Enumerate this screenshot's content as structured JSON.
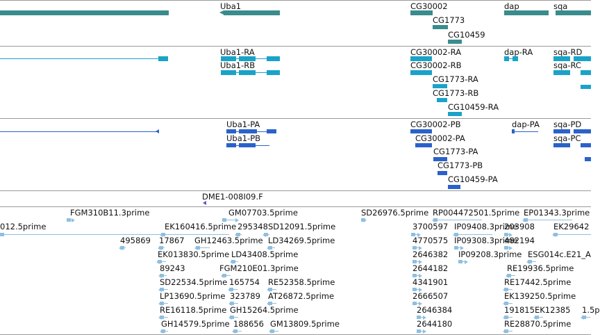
{
  "colors": {
    "gene": "#3a8c8c",
    "transcript": "#1aa3c8",
    "protein": "#2a62c9",
    "cdna": "#8fbfe0",
    "contig": "#6a4fc2",
    "separator": "#9a9a9a"
  },
  "gene_track": {
    "labels": [
      "Uba1",
      "CG30002",
      "CG1773",
      "CG10459",
      "dap",
      "sqa"
    ]
  },
  "transcript_track": {
    "labels": [
      "Uba1-RA",
      "Uba1-RB",
      "CG30002-RA",
      "CG30002-RB",
      "CG1773-RA",
      "CG1773-RB",
      "CG10459-RA",
      "dap-RA",
      "sqa-RD",
      "sqa-RC"
    ]
  },
  "protein_track": {
    "labels": [
      "Uba1-PA",
      "Uba1-PB",
      "CG30002-PB",
      "CG30002-PA",
      "CG1773-PA",
      "CG1773-PB",
      "CG10459-PA",
      "dap-PA",
      "sqa-PD",
      "sqa-PC"
    ]
  },
  "contig_track": {
    "labels": [
      "DME1-008I09.F"
    ]
  },
  "cdna_track": {
    "labels": [
      "FGM310B11.3prime",
      "GM07703.5prime",
      "SD26976.5prime",
      "RP004472501.5prime",
      "EP01343.3prime",
      "012.5prime",
      "EK160416.5prime",
      "295348",
      "SD12091.5prime",
      "3700597",
      "IP09408.3prime",
      "203908",
      "EK29642",
      "495869",
      "17867",
      "GH12463.5prime",
      "LD34269.5prime",
      "4770575",
      "IP09308.3prime",
      "482194",
      "EK013830.5prime",
      "LD43408.5prime",
      "2646382",
      "IP09208.3prime",
      "ESG014c.E21_A",
      "89243",
      "FGM210E01.3prime",
      "2644182",
      "RE19936.5prime",
      "SD22534.5prime",
      "165754",
      "RE52358.5prime",
      "4341901",
      "RE17442.5prime",
      "LP13690.5prime",
      "323789",
      "AT26872.5prime",
      "2666507",
      "EK139250.5prime",
      "RE16118.5prime",
      "GH15264.5prime",
      "2646384",
      "191815",
      "EK12385",
      "1.5p",
      "GH14579.5prime",
      "188656",
      "GM13809.5prime",
      "2644180",
      "RE28870.5prime"
    ]
  }
}
